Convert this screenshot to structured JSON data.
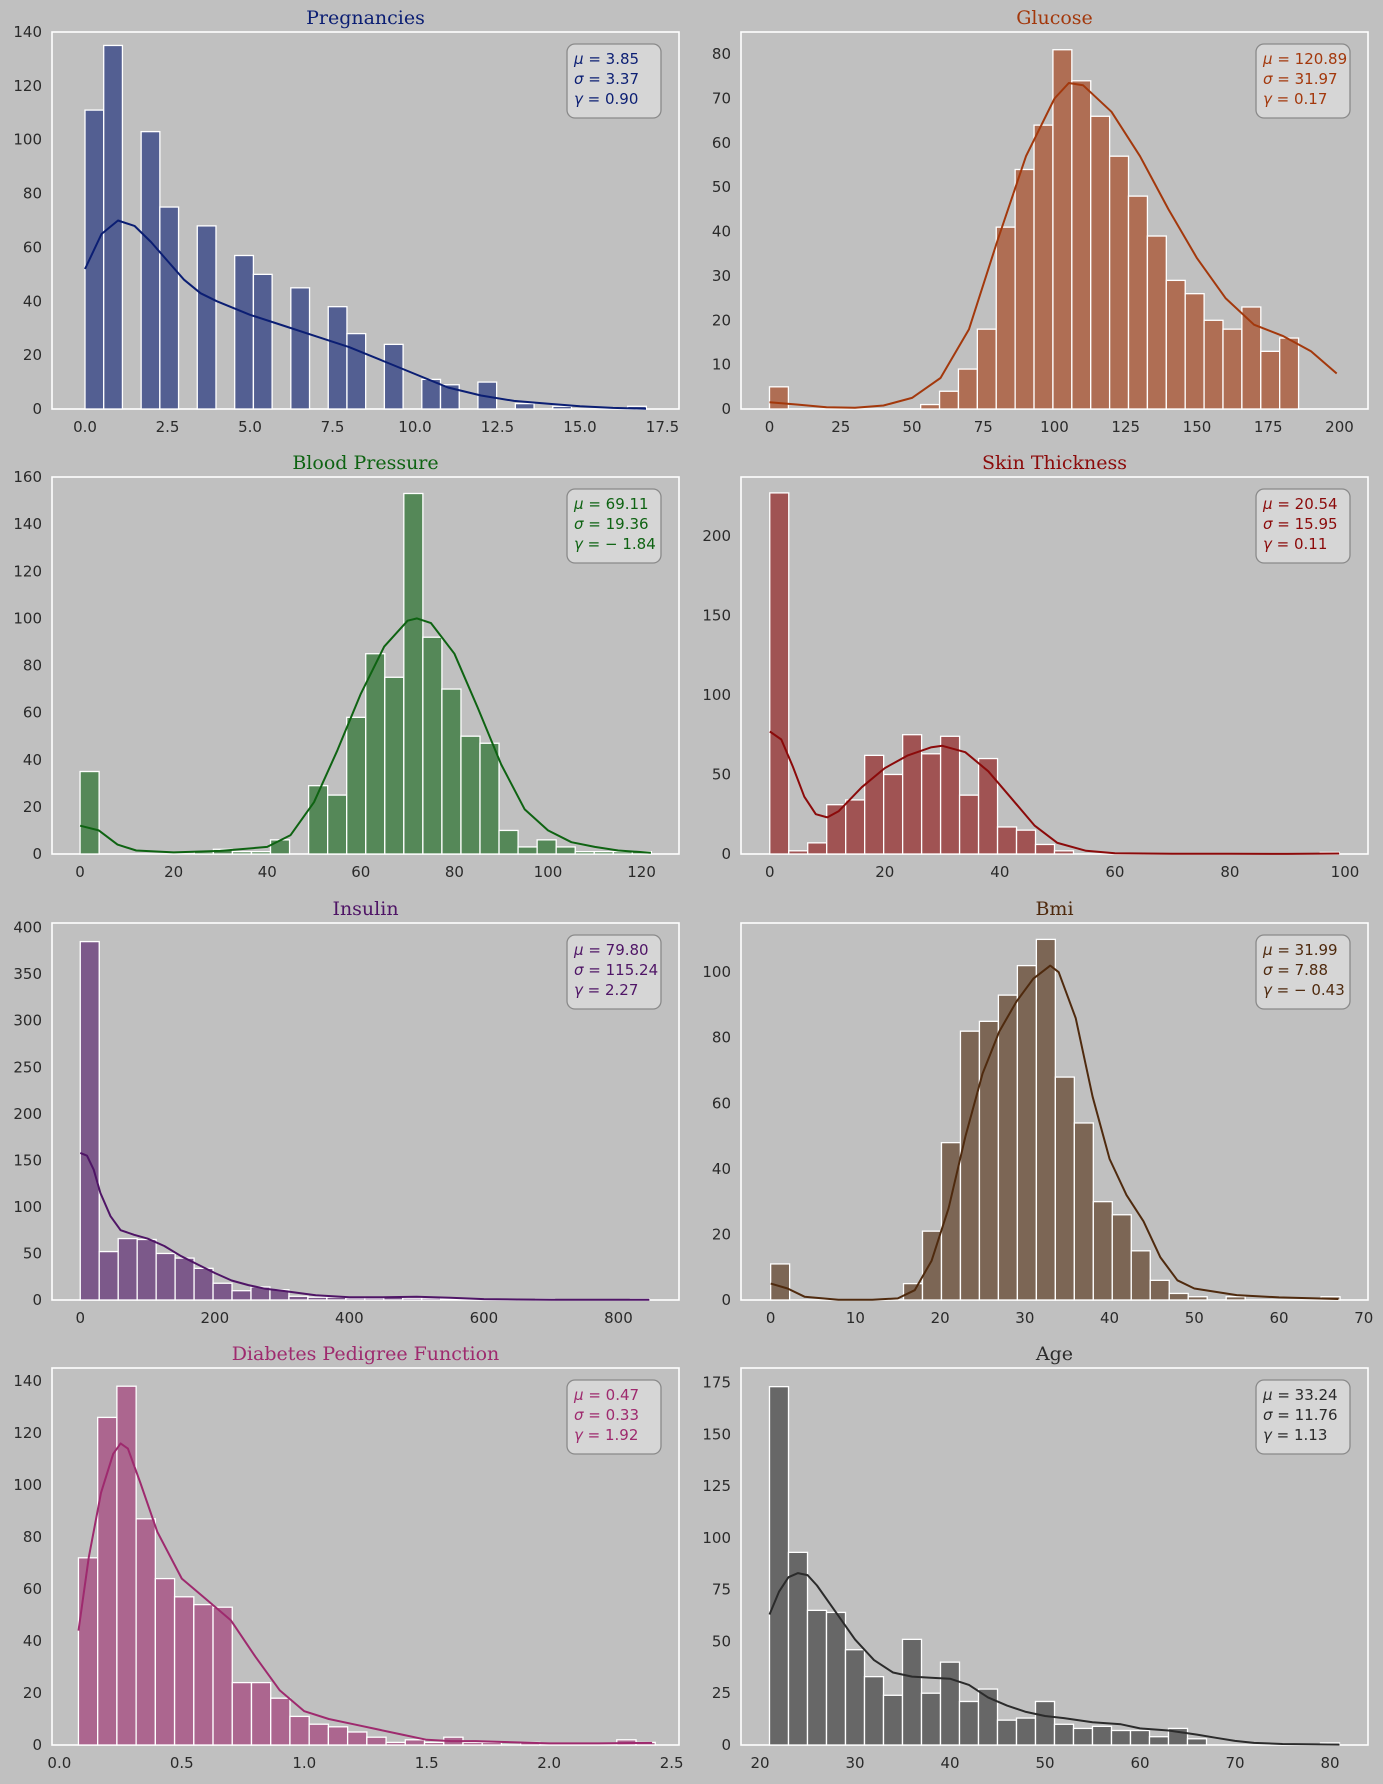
{
  "chart_data": [
    {
      "type": "bar",
      "title": "Pregnancies",
      "color": "#0b1e73",
      "stats": {
        "mu": "3.85",
        "sigma": "3.37",
        "gamma": "0.90"
      },
      "xlim": [
        -1.0,
        18.0
      ],
      "ylim": [
        0,
        140
      ],
      "xticks": [
        "0.0",
        "2.5",
        "5.0",
        "7.5",
        "10.0",
        "12.5",
        "15.0",
        "17.5"
      ],
      "xtick_values": [
        0,
        2.5,
        5,
        7.5,
        10,
        12.5,
        15,
        17.5
      ],
      "yticks": [
        0,
        20,
        40,
        60,
        80,
        100,
        120,
        140
      ],
      "bin_start": 0,
      "bin_width": 0.567,
      "counts": [
        111,
        135,
        0,
        103,
        75,
        0,
        68,
        0,
        57,
        50,
        0,
        45,
        0,
        38,
        28,
        0,
        24,
        0,
        11,
        9,
        0,
        10,
        0,
        2,
        0,
        1,
        0,
        0,
        0,
        1
      ],
      "kde": [
        [
          0,
          52
        ],
        [
          0.5,
          65
        ],
        [
          1,
          70
        ],
        [
          1.5,
          68
        ],
        [
          2,
          62
        ],
        [
          2.5,
          55
        ],
        [
          3,
          48
        ],
        [
          3.5,
          43
        ],
        [
          4,
          40
        ],
        [
          5,
          35
        ],
        [
          6,
          31
        ],
        [
          7,
          27
        ],
        [
          8,
          23
        ],
        [
          9,
          18
        ],
        [
          10,
          13
        ],
        [
          11,
          8
        ],
        [
          12,
          5
        ],
        [
          13,
          3
        ],
        [
          14,
          2
        ],
        [
          15,
          1
        ],
        [
          16,
          0.4
        ],
        [
          17,
          0.1
        ]
      ]
    },
    {
      "type": "bar",
      "title": "Glucose",
      "color": "#a3380c",
      "stats": {
        "mu": "120.89",
        "sigma": "31.97",
        "gamma": "0.17"
      },
      "xlim": [
        -10,
        210
      ],
      "ylim": [
        0,
        85
      ],
      "xticks": [
        "0",
        "25",
        "50",
        "75",
        "100",
        "125",
        "150",
        "175",
        "200"
      ],
      "xtick_values": [
        0,
        25,
        50,
        75,
        100,
        125,
        150,
        175,
        200
      ],
      "yticks": [
        0,
        10,
        20,
        30,
        40,
        50,
        60,
        70,
        80
      ],
      "bin_start": 0,
      "bin_width": 6.63,
      "counts": [
        5,
        0,
        0,
        0,
        0,
        0,
        0,
        0,
        1,
        4,
        9,
        18,
        41,
        54,
        64,
        81,
        74,
        66,
        57,
        48,
        39,
        29,
        26,
        20,
        18,
        23,
        13,
        16
      ],
      "kde": [
        [
          0,
          1.5
        ],
        [
          10,
          1
        ],
        [
          20,
          0.4
        ],
        [
          30,
          0.3
        ],
        [
          40,
          0.8
        ],
        [
          50,
          2.5
        ],
        [
          60,
          7
        ],
        [
          70,
          18
        ],
        [
          80,
          38
        ],
        [
          90,
          57
        ],
        [
          100,
          70
        ],
        [
          105,
          73.5
        ],
        [
          110,
          73
        ],
        [
          120,
          67
        ],
        [
          130,
          57
        ],
        [
          140,
          45
        ],
        [
          150,
          34
        ],
        [
          160,
          25
        ],
        [
          170,
          19
        ],
        [
          180,
          16.5
        ],
        [
          190,
          13
        ],
        [
          199,
          8
        ]
      ]
    },
    {
      "type": "bar",
      "title": "Blood Pressure",
      "color": "#0e6312",
      "stats": {
        "mu": "69.11",
        "sigma": "19.36",
        "gamma": "− 1.84"
      },
      "xlim": [
        -6,
        128
      ],
      "ylim": [
        0,
        160
      ],
      "xticks": [
        "0",
        "20",
        "40",
        "60",
        "80",
        "100",
        "120"
      ],
      "xtick_values": [
        0,
        20,
        40,
        60,
        80,
        100,
        120
      ],
      "yticks": [
        0,
        20,
        40,
        60,
        80,
        100,
        120,
        140,
        160
      ],
      "bin_start": 0,
      "bin_width": 4.07,
      "counts": [
        35,
        0,
        0,
        0,
        0,
        0,
        1,
        2,
        1,
        1,
        6,
        0,
        29,
        25,
        58,
        85,
        75,
        153,
        92,
        70,
        50,
        47,
        10,
        3,
        6,
        3,
        1,
        1,
        1,
        1
      ],
      "kde": [
        [
          0,
          12
        ],
        [
          4,
          10
        ],
        [
          8,
          4
        ],
        [
          12,
          1.5
        ],
        [
          20,
          0.7
        ],
        [
          30,
          1.3
        ],
        [
          40,
          3
        ],
        [
          45,
          8
        ],
        [
          50,
          22
        ],
        [
          55,
          44
        ],
        [
          60,
          68
        ],
        [
          65,
          88
        ],
        [
          70,
          99
        ],
        [
          72,
          100
        ],
        [
          75,
          98
        ],
        [
          80,
          85
        ],
        [
          85,
          62
        ],
        [
          90,
          38
        ],
        [
          95,
          19
        ],
        [
          100,
          10
        ],
        [
          105,
          5
        ],
        [
          110,
          3
        ],
        [
          115,
          1.5
        ],
        [
          122,
          0.5
        ]
      ]
    },
    {
      "type": "bar",
      "title": "Skin Thickness",
      "color": "#8b0a0a",
      "stats": {
        "mu": "20.54",
        "sigma": "15.95",
        "gamma": "0.11"
      },
      "xlim": [
        -5,
        104
      ],
      "ylim": [
        0,
        237
      ],
      "xticks": [
        "0",
        "20",
        "40",
        "60",
        "80",
        "100"
      ],
      "xtick_values": [
        0,
        20,
        40,
        60,
        80,
        100
      ],
      "yticks": [
        0,
        50,
        100,
        150,
        200
      ],
      "bin_start": 0,
      "bin_width": 3.3,
      "counts": [
        227,
        2,
        7,
        31,
        34,
        62,
        50,
        75,
        63,
        74,
        37,
        60,
        17,
        15,
        6,
        2,
        0,
        0,
        0,
        0,
        0,
        0,
        0,
        0,
        0,
        0,
        0,
        0,
        0,
        1
      ],
      "kde": [
        [
          0,
          77
        ],
        [
          2,
          72
        ],
        [
          4,
          55
        ],
        [
          6,
          36
        ],
        [
          8,
          25
        ],
        [
          10,
          23
        ],
        [
          12,
          27
        ],
        [
          16,
          42
        ],
        [
          20,
          54
        ],
        [
          24,
          62
        ],
        [
          28,
          67
        ],
        [
          30,
          68
        ],
        [
          34,
          64
        ],
        [
          38,
          52
        ],
        [
          42,
          35
        ],
        [
          46,
          18
        ],
        [
          50,
          7
        ],
        [
          55,
          2
        ],
        [
          60,
          0.5
        ],
        [
          70,
          0.1
        ],
        [
          80,
          0.1
        ],
        [
          90,
          0.05
        ],
        [
          99,
          0.3
        ]
      ]
    },
    {
      "type": "bar",
      "title": "Insulin",
      "color": "#4f1566",
      "stats": {
        "mu": "79.80",
        "sigma": "115.24",
        "gamma": "2.27"
      },
      "xlim": [
        -42,
        890
      ],
      "ylim": [
        0,
        405
      ],
      "xticks": [
        "0",
        "200",
        "400",
        "600",
        "800"
      ],
      "xtick_values": [
        0,
        200,
        400,
        600,
        800
      ],
      "yticks": [
        0,
        50,
        100,
        150,
        200,
        250,
        300,
        350,
        400
      ],
      "bin_start": 0,
      "bin_width": 28.2,
      "counts": [
        385,
        52,
        66,
        65,
        50,
        45,
        34,
        18,
        10,
        14,
        11,
        4,
        3,
        3,
        2,
        2,
        3,
        2,
        2,
        1,
        1,
        0,
        0,
        0,
        1,
        0,
        0,
        0,
        0,
        1
      ],
      "kde": [
        [
          0,
          158
        ],
        [
          10,
          155
        ],
        [
          20,
          140
        ],
        [
          30,
          115
        ],
        [
          45,
          90
        ],
        [
          60,
          75
        ],
        [
          80,
          70
        ],
        [
          100,
          66
        ],
        [
          125,
          58
        ],
        [
          150,
          47
        ],
        [
          175,
          38
        ],
        [
          200,
          29
        ],
        [
          225,
          21
        ],
        [
          250,
          16
        ],
        [
          275,
          12
        ],
        [
          300,
          10
        ],
        [
          350,
          5
        ],
        [
          400,
          3
        ],
        [
          450,
          3
        ],
        [
          500,
          3.5
        ],
        [
          550,
          2.5
        ],
        [
          600,
          1
        ],
        [
          650,
          0.5
        ],
        [
          700,
          0.3
        ],
        [
          846,
          0.2
        ]
      ]
    },
    {
      "type": "bar",
      "title": "Bmi",
      "color": "#4f2a0e",
      "stats": {
        "mu": "31.99",
        "sigma": "7.88",
        "gamma": "− 0.43"
      },
      "xlim": [
        -3.5,
        70.5
      ],
      "ylim": [
        0,
        115
      ],
      "xticks": [
        "0",
        "10",
        "20",
        "30",
        "40",
        "50",
        "60",
        "70"
      ],
      "xtick_values": [
        0,
        10,
        20,
        30,
        40,
        50,
        60,
        70
      ],
      "yticks": [
        0,
        20,
        40,
        60,
        80,
        100
      ],
      "bin_start": 0,
      "bin_width": 2.24,
      "counts": [
        11,
        0,
        0,
        0,
        0,
        0,
        0,
        5,
        21,
        48,
        82,
        85,
        93,
        102,
        110,
        68,
        54,
        30,
        26,
        15,
        6,
        2,
        1,
        0,
        1,
        0,
        0,
        0,
        0,
        1
      ],
      "kde": [
        [
          0,
          5
        ],
        [
          2,
          3.5
        ],
        [
          4,
          1
        ],
        [
          8,
          0.1
        ],
        [
          12,
          0.1
        ],
        [
          15,
          0.5
        ],
        [
          17,
          3
        ],
        [
          19,
          12
        ],
        [
          21,
          28
        ],
        [
          23,
          50
        ],
        [
          25,
          69
        ],
        [
          27,
          82
        ],
        [
          29,
          91
        ],
        [
          31,
          98
        ],
        [
          33,
          102
        ],
        [
          34,
          100
        ],
        [
          36,
          86
        ],
        [
          38,
          62
        ],
        [
          40,
          43
        ],
        [
          42,
          32
        ],
        [
          44,
          24
        ],
        [
          46,
          13
        ],
        [
          48,
          6
        ],
        [
          50,
          3.5
        ],
        [
          55,
          1.5
        ],
        [
          60,
          0.8
        ],
        [
          67,
          0.3
        ]
      ]
    },
    {
      "type": "bar",
      "title": "Diabetes Pedigree Function",
      "color": "#9e2a6e",
      "stats": {
        "mu": "0.47",
        "sigma": "0.33",
        "gamma": "1.92"
      },
      "xlim": [
        -0.03,
        2.53
      ],
      "ylim": [
        0,
        145
      ],
      "xticks": [
        "0.0",
        "0.5",
        "1.0",
        "1.5",
        "2.0",
        "2.5"
      ],
      "xtick_values": [
        0,
        0.5,
        1.0,
        1.5,
        2.0,
        2.5
      ],
      "yticks": [
        0,
        20,
        40,
        60,
        80,
        100,
        120,
        140
      ],
      "bin_start": 0.078,
      "bin_width": 0.0785,
      "counts": [
        72,
        126,
        138,
        87,
        64,
        57,
        54,
        53,
        24,
        24,
        18,
        11,
        8,
        7,
        5,
        3,
        1,
        2,
        1,
        3,
        1,
        1,
        0,
        1,
        0,
        0,
        0,
        0,
        2,
        1
      ],
      "kde": [
        [
          0.078,
          44
        ],
        [
          0.12,
          72
        ],
        [
          0.17,
          97
        ],
        [
          0.22,
          112
        ],
        [
          0.25,
          116
        ],
        [
          0.28,
          114
        ],
        [
          0.33,
          101
        ],
        [
          0.4,
          82
        ],
        [
          0.5,
          64
        ],
        [
          0.6,
          56
        ],
        [
          0.7,
          48
        ],
        [
          0.8,
          34
        ],
        [
          0.9,
          21
        ],
        [
          1.0,
          13
        ],
        [
          1.1,
          10
        ],
        [
          1.2,
          8
        ],
        [
          1.3,
          6
        ],
        [
          1.4,
          4
        ],
        [
          1.5,
          2
        ],
        [
          1.6,
          1.5
        ],
        [
          1.7,
          1.5
        ],
        [
          1.8,
          1.2
        ],
        [
          2.0,
          0.6
        ],
        [
          2.2,
          0.6
        ],
        [
          2.42,
          0.8
        ]
      ]
    },
    {
      "type": "bar",
      "title": "Age",
      "color": "#2b2b2b",
      "stats": {
        "mu": "33.24",
        "sigma": "11.76",
        "gamma": "1.13"
      },
      "xlim": [
        18,
        84
      ],
      "ylim": [
        0,
        182
      ],
      "xticks": [
        "20",
        "30",
        "40",
        "50",
        "60",
        "70",
        "80"
      ],
      "xtick_values": [
        20,
        30,
        40,
        50,
        60,
        70,
        80
      ],
      "yticks": [
        0,
        25,
        50,
        75,
        100,
        125,
        150,
        175
      ],
      "bin_start": 21,
      "bin_width": 2.0,
      "counts": [
        173,
        93,
        65,
        64,
        46,
        33,
        24,
        51,
        25,
        40,
        21,
        27,
        12,
        13,
        21,
        10,
        8,
        9,
        7,
        7,
        4,
        8,
        3,
        0,
        0,
        0,
        0,
        0,
        0,
        1
      ],
      "kde": [
        [
          21,
          63
        ],
        [
          22,
          74
        ],
        [
          23,
          81
        ],
        [
          24,
          83
        ],
        [
          25,
          82
        ],
        [
          26,
          77
        ],
        [
          28,
          64
        ],
        [
          30,
          51
        ],
        [
          32,
          41
        ],
        [
          34,
          35
        ],
        [
          36,
          33
        ],
        [
          38,
          32.5
        ],
        [
          40,
          32
        ],
        [
          42,
          29
        ],
        [
          44,
          23
        ],
        [
          46,
          19
        ],
        [
          48,
          16
        ],
        [
          50,
          14
        ],
        [
          52,
          13
        ],
        [
          55,
          11
        ],
        [
          58,
          10
        ],
        [
          60,
          8
        ],
        [
          63,
          7
        ],
        [
          66,
          5
        ],
        [
          68,
          3.5
        ],
        [
          70,
          2
        ],
        [
          72,
          1
        ],
        [
          75,
          0.5
        ],
        [
          81,
          0.2
        ]
      ]
    }
  ]
}
